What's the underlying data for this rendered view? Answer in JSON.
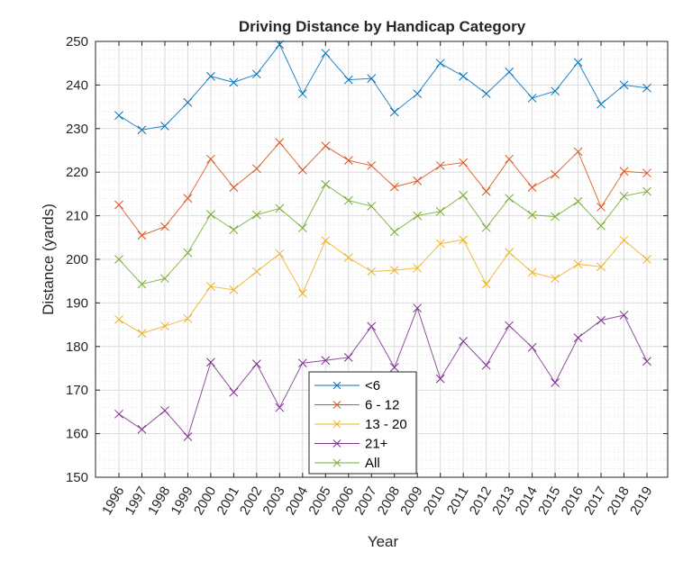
{
  "chart_data": {
    "type": "line",
    "title": "Driving Distance by Handicap Category",
    "xlabel": "Year",
    "ylabel": "Distance (yards)",
    "ylim": [
      150,
      250
    ],
    "yticks": [
      150,
      160,
      170,
      180,
      190,
      200,
      210,
      220,
      230,
      240,
      250
    ],
    "grid": true,
    "minor_grid": true,
    "legend_position": "lower center (inside axes)",
    "marker": "x",
    "x": [
      1996,
      1997,
      1998,
      1999,
      2000,
      2001,
      2002,
      2003,
      2004,
      2005,
      2006,
      2007,
      2008,
      2009,
      2010,
      2011,
      2012,
      2013,
      2014,
      2015,
      2016,
      2017,
      2018,
      2019
    ],
    "series": [
      {
        "name": "<6",
        "color": "#0072BD",
        "values": [
          233,
          229.7,
          230.6,
          236,
          242,
          240.6,
          242.5,
          249.3,
          238,
          247.3,
          241.2,
          241.5,
          233.8,
          238,
          245,
          242,
          238,
          243,
          237,
          238.6,
          245.2,
          235.6,
          240,
          239.3
        ]
      },
      {
        "name": "6 - 12",
        "color": "#D95319",
        "values": [
          212.5,
          205.5,
          207.5,
          214,
          223,
          216.5,
          220.8,
          226.8,
          220.5,
          226,
          222.7,
          221.5,
          216.6,
          218,
          221.5,
          222.2,
          215.6,
          223,
          216.5,
          219.5,
          224.7,
          212,
          220.2,
          219.8
        ]
      },
      {
        "name": "13 - 20",
        "color": "#EDB120",
        "values": [
          186.2,
          183,
          184.7,
          186.4,
          193.8,
          193,
          197.2,
          201.3,
          192.2,
          204.3,
          200.4,
          197.2,
          197.5,
          198,
          203.6,
          204.5,
          194.3,
          201.6,
          197,
          195.6,
          198.9,
          198.3,
          204.4,
          200
        ]
      },
      {
        "name": "21+",
        "color": "#7E2F8E",
        "values": [
          164.5,
          161,
          165.3,
          159.3,
          176.4,
          169.5,
          176,
          166,
          176.2,
          176.8,
          177.5,
          184.6,
          175.2,
          188.8,
          172.6,
          181.2,
          175.7,
          184.8,
          179.8,
          171.7,
          182,
          186,
          187.2,
          176.6
        ]
      },
      {
        "name": "All",
        "color": "#77AC30",
        "values": [
          200,
          194.3,
          195.6,
          201.5,
          210.3,
          206.8,
          210.2,
          211.7,
          207.2,
          217.2,
          213.5,
          212.2,
          206.3,
          210,
          211,
          214.7,
          207.3,
          214,
          210.2,
          209.8,
          213.3,
          207.7,
          214.5,
          215.6
        ]
      }
    ]
  }
}
